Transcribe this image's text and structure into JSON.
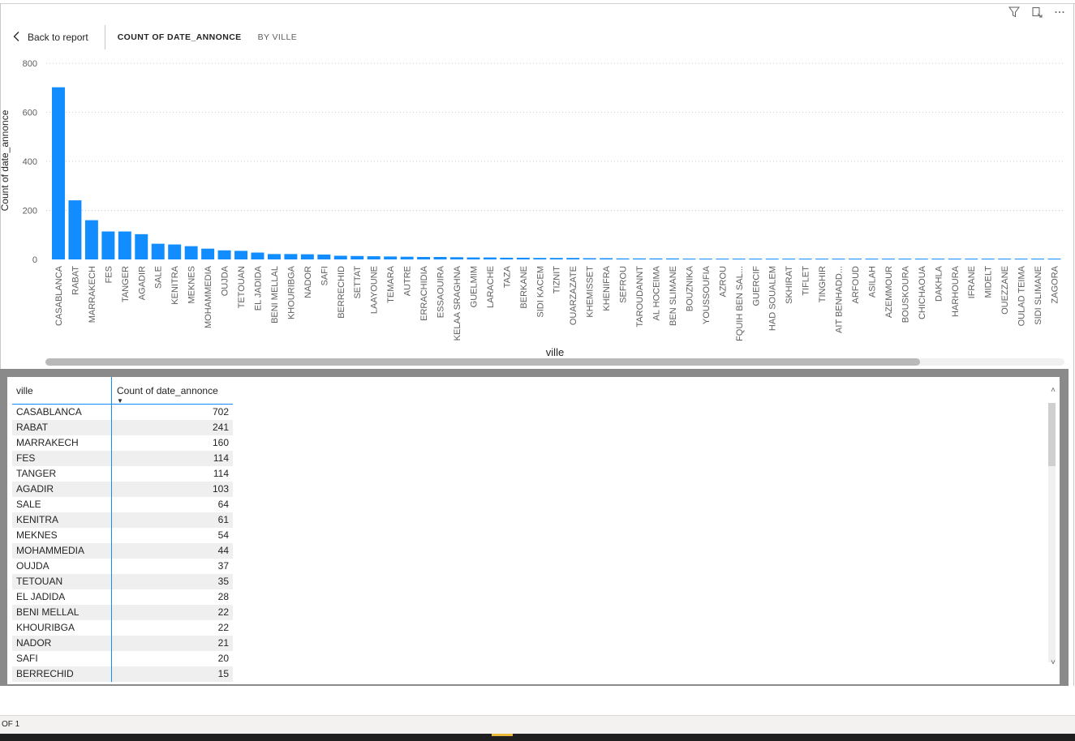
{
  "header": {
    "back_label": "Back to report",
    "title": "COUNT OF DATE_ANNONCE",
    "subtitle": "BY VILLE"
  },
  "icons": [
    "filter-icon",
    "focus-mode-icon",
    "more-options-icon"
  ],
  "chart_data": {
    "type": "bar",
    "xlabel": "ville",
    "ylabel": "Count of date_annonce",
    "ylim": [
      0,
      800
    ],
    "yticks": [
      "0",
      "200",
      "400",
      "600",
      "800"
    ],
    "grid": true,
    "bar_color": "#118dff",
    "categories": [
      "CASABLANCA",
      "RABAT",
      "MARRAKECH",
      "FES",
      "TANGER",
      "AGADIR",
      "SALE",
      "KENITRA",
      "MEKNES",
      "MOHAMMEDIA",
      "OUJDA",
      "TETOUAN",
      "EL JADIDA",
      "BENI MELLAL",
      "KHOURIBGA",
      "NADOR",
      "SAFI",
      "BERRECHID",
      "SETTAT",
      "LAAYOUNE",
      "TEMARA",
      "AUTRE",
      "ERRACHIDIA",
      "ESSAOUIRA",
      "KELAA SRAGHNA",
      "GUELMIM",
      "LARACHE",
      "TAZA",
      "BERKANE",
      "SIDI KACEM",
      "TIZNIT",
      "OUARZAZATE",
      "KHEMISSET",
      "KHENIFRA",
      "SEFROU",
      "TAROUDANNT",
      "AL HOCEIMA",
      "BEN SLIMANE",
      "BOUZNIKA",
      "YOUSSOUFIA",
      "AZROU",
      "FQUIH BEN SAL...",
      "GUERCIF",
      "HAD SOUALEM",
      "SKHIRAT",
      "TIFLET",
      "TINGHIR",
      "AIT BENHADD...",
      "ARFOUD",
      "ASILAH",
      "AZEMMOUR",
      "BOUSKOURA",
      "CHICHAOUA",
      "DAKHLA",
      "HARHOURA",
      "IFRANE",
      "MIDELT",
      "OUEZZANE",
      "OULAD TEIMA",
      "SIDI SLIMANE",
      "ZAGORA"
    ],
    "values": [
      702,
      241,
      160,
      114,
      114,
      103,
      64,
      61,
      54,
      44,
      37,
      35,
      28,
      22,
      22,
      21,
      20,
      15,
      14,
      13,
      12,
      11,
      10,
      10,
      9,
      8,
      8,
      7,
      7,
      6,
      6,
      6,
      5,
      5,
      4,
      4,
      4,
      4,
      3,
      3,
      3,
      3,
      3,
      3,
      3,
      2,
      2,
      2,
      2,
      2,
      2,
      2,
      2,
      2,
      2,
      2,
      2,
      2,
      2,
      2,
      2
    ]
  },
  "table": {
    "columns": [
      "ville",
      "Count of date_annonce"
    ],
    "rows": [
      [
        "CASABLANCA",
        "702"
      ],
      [
        "RABAT",
        "241"
      ],
      [
        "MARRAKECH",
        "160"
      ],
      [
        "FES",
        "114"
      ],
      [
        "TANGER",
        "114"
      ],
      [
        "AGADIR",
        "103"
      ],
      [
        "SALE",
        "64"
      ],
      [
        "KENITRA",
        "61"
      ],
      [
        "MEKNES",
        "54"
      ],
      [
        "MOHAMMEDIA",
        "44"
      ],
      [
        "OUJDA",
        "37"
      ],
      [
        "TETOUAN",
        "35"
      ],
      [
        "EL JADIDA",
        "28"
      ],
      [
        "BENI MELLAL",
        "22"
      ],
      [
        "KHOURIBGA",
        "22"
      ],
      [
        "NADOR",
        "21"
      ],
      [
        "SAFI",
        "20"
      ],
      [
        "BERRECHID",
        "15"
      ]
    ]
  },
  "footer": {
    "page_indicator": "OF 1"
  }
}
